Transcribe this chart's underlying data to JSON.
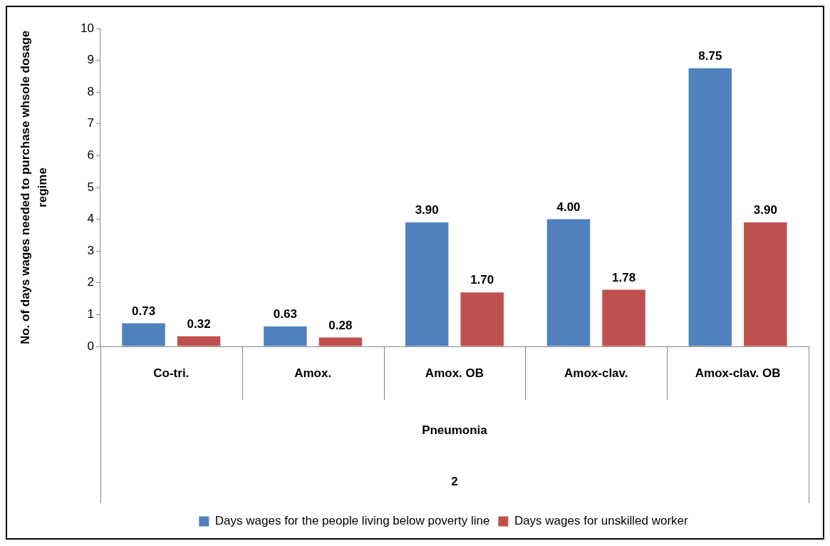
{
  "chart_data": {
    "type": "bar",
    "categories": [
      "Co-tri.",
      "Amox.",
      "Amox. OB",
      "Amox-clav.",
      "Amox-clav. OB"
    ],
    "series": [
      {
        "name": "Days wages for the people living below poverty line",
        "color": "#4f81bd",
        "values": [
          0.73,
          0.63,
          3.9,
          4.0,
          8.75
        ],
        "value_labels": [
          "0.73",
          "0.63",
          "3.90",
          "4.00",
          "8.75"
        ]
      },
      {
        "name": "Days wages for unskilled worker",
        "color": "#c0504d",
        "values": [
          0.32,
          0.28,
          1.7,
          1.78,
          3.9
        ],
        "value_labels": [
          "0.32",
          "0.28",
          "1.70",
          "1.78",
          "3.90"
        ]
      }
    ],
    "xlabel": "Pneumonia",
    "ylabel": "No. of days wages needed to purchase whsole dosage regime",
    "annotations": [
      "2"
    ],
    "ylim": [
      0,
      10
    ],
    "yticks": [
      0,
      1,
      2,
      3,
      4,
      5,
      6,
      7,
      8,
      9,
      10
    ],
    "grid": false,
    "legend": "bottom"
  }
}
